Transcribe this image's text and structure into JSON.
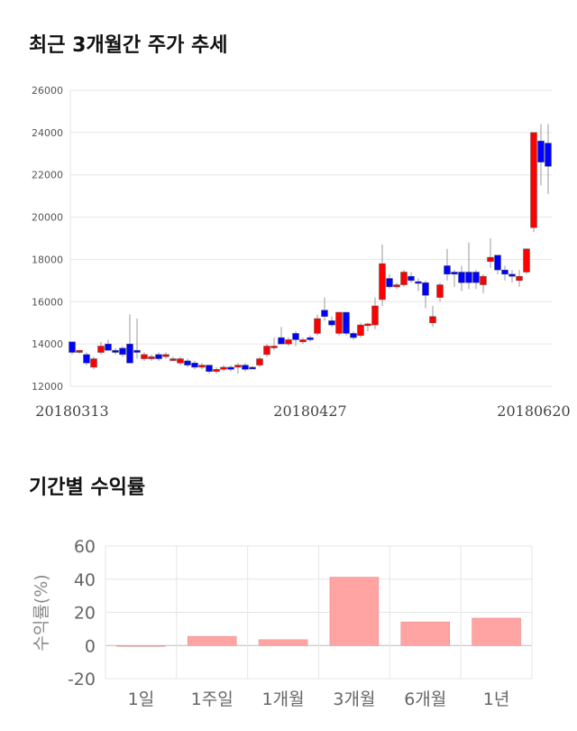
{
  "chart_data": [
    {
      "type": "candlestick",
      "title": "최근 3개월간 주가 추세",
      "ylim": [
        12000,
        26000
      ],
      "yticks": [
        "26000",
        "24000",
        "22000",
        "20000",
        "18000",
        "16000",
        "14000",
        "12000"
      ],
      "xticks": [
        "20180313",
        "20180427",
        "20180620"
      ],
      "colors": {
        "up": "#ff0000",
        "down": "#0000ff"
      },
      "ohlc": [
        [
          14100,
          14100,
          13500,
          13600
        ],
        [
          13600,
          13700,
          13550,
          13700
        ],
        [
          13500,
          13600,
          13000,
          13100
        ],
        [
          12900,
          13400,
          12800,
          13300
        ],
        [
          13600,
          14100,
          13500,
          13900
        ],
        [
          14000,
          14200,
          13700,
          13700
        ],
        [
          13700,
          13800,
          13500,
          13600
        ],
        [
          13800,
          13900,
          13400,
          13500
        ],
        [
          14000,
          15400,
          13100,
          13100
        ],
        [
          13700,
          15200,
          13300,
          13600
        ],
        [
          13300,
          13600,
          13200,
          13500
        ],
        [
          13300,
          13500,
          13200,
          13400
        ],
        [
          13500,
          13600,
          13200,
          13300
        ],
        [
          13400,
          13600,
          13300,
          13500
        ],
        [
          13300,
          13400,
          13200,
          13300
        ],
        [
          13100,
          13400,
          13000,
          13300
        ],
        [
          13200,
          13300,
          12900,
          13000
        ],
        [
          13100,
          13200,
          12800,
          12900
        ],
        [
          12900,
          13100,
          12800,
          13000
        ],
        [
          13000,
          13000,
          12600,
          12700
        ],
        [
          12700,
          12900,
          12600,
          12800
        ],
        [
          12800,
          13000,
          12700,
          12900
        ],
        [
          12900,
          13000,
          12700,
          12800
        ],
        [
          12900,
          13100,
          12600,
          13000
        ],
        [
          13000,
          13100,
          12700,
          12800
        ],
        [
          12900,
          12950,
          12800,
          12850
        ],
        [
          13000,
          13400,
          12900,
          13300
        ],
        [
          13500,
          14000,
          13400,
          13900
        ],
        [
          13900,
          14300,
          13700,
          13900
        ],
        [
          14300,
          14800,
          14000,
          14000
        ],
        [
          14000,
          14300,
          13900,
          14200
        ],
        [
          14500,
          14600,
          13900,
          14200
        ],
        [
          14100,
          14300,
          14000,
          14200
        ],
        [
          14300,
          14400,
          14100,
          14200
        ],
        [
          14500,
          15400,
          14400,
          15200
        ],
        [
          15600,
          16200,
          15100,
          15300
        ],
        [
          15100,
          15300,
          14800,
          14900
        ],
        [
          14500,
          15500,
          14400,
          15500
        ],
        [
          15500,
          15500,
          14400,
          14500
        ],
        [
          14500,
          14600,
          14200,
          14300
        ],
        [
          14400,
          15000,
          14300,
          14900
        ],
        [
          14900,
          15000,
          14600,
          14950
        ],
        [
          14900,
          16200,
          14700,
          15800
        ],
        [
          16100,
          18700,
          15800,
          17800
        ],
        [
          17100,
          17300,
          16600,
          16700
        ],
        [
          16700,
          16900,
          16600,
          16800
        ],
        [
          16800,
          17500,
          16700,
          17400
        ],
        [
          17200,
          17400,
          16900,
          17000
        ],
        [
          16950,
          17100,
          16500,
          16900
        ],
        [
          16900,
          17000,
          15700,
          16300
        ],
        [
          15000,
          15800,
          14800,
          15300
        ],
        [
          16200,
          16900,
          16000,
          16800
        ],
        [
          17700,
          18500,
          17000,
          17300
        ],
        [
          17400,
          17500,
          16700,
          17300
        ],
        [
          17400,
          17700,
          16500,
          16900
        ],
        [
          17400,
          18800,
          16600,
          16900
        ],
        [
          17400,
          17500,
          16600,
          16900
        ],
        [
          16800,
          17300,
          16400,
          17200
        ],
        [
          17900,
          19000,
          17600,
          18100
        ],
        [
          18200,
          18200,
          17300,
          17500
        ],
        [
          17500,
          17700,
          17000,
          17300
        ],
        [
          17300,
          17500,
          16900,
          17200
        ],
        [
          17000,
          17500,
          16700,
          17200
        ],
        [
          17400,
          18500,
          17300,
          18500
        ],
        [
          19500,
          24000,
          19300,
          24000
        ],
        [
          23600,
          24400,
          21500,
          22600
        ],
        [
          23500,
          24400,
          21100,
          22400
        ]
      ]
    },
    {
      "type": "bar",
      "title": "기간별 수익률",
      "ylabel": "수익률(%)",
      "ylim": [
        -20,
        60
      ],
      "yticks": [
        "60",
        "40",
        "20",
        "0",
        "-20"
      ],
      "categories": [
        "1일",
        "1주일",
        "1개월",
        "3개월",
        "6개월",
        "1년"
      ],
      "values": [
        -0.3,
        5.5,
        3.5,
        41.2,
        14.2,
        16.5
      ],
      "colors": {
        "bar": "#ffa3a3",
        "zero_bar": "#a3c3d3"
      }
    }
  ]
}
